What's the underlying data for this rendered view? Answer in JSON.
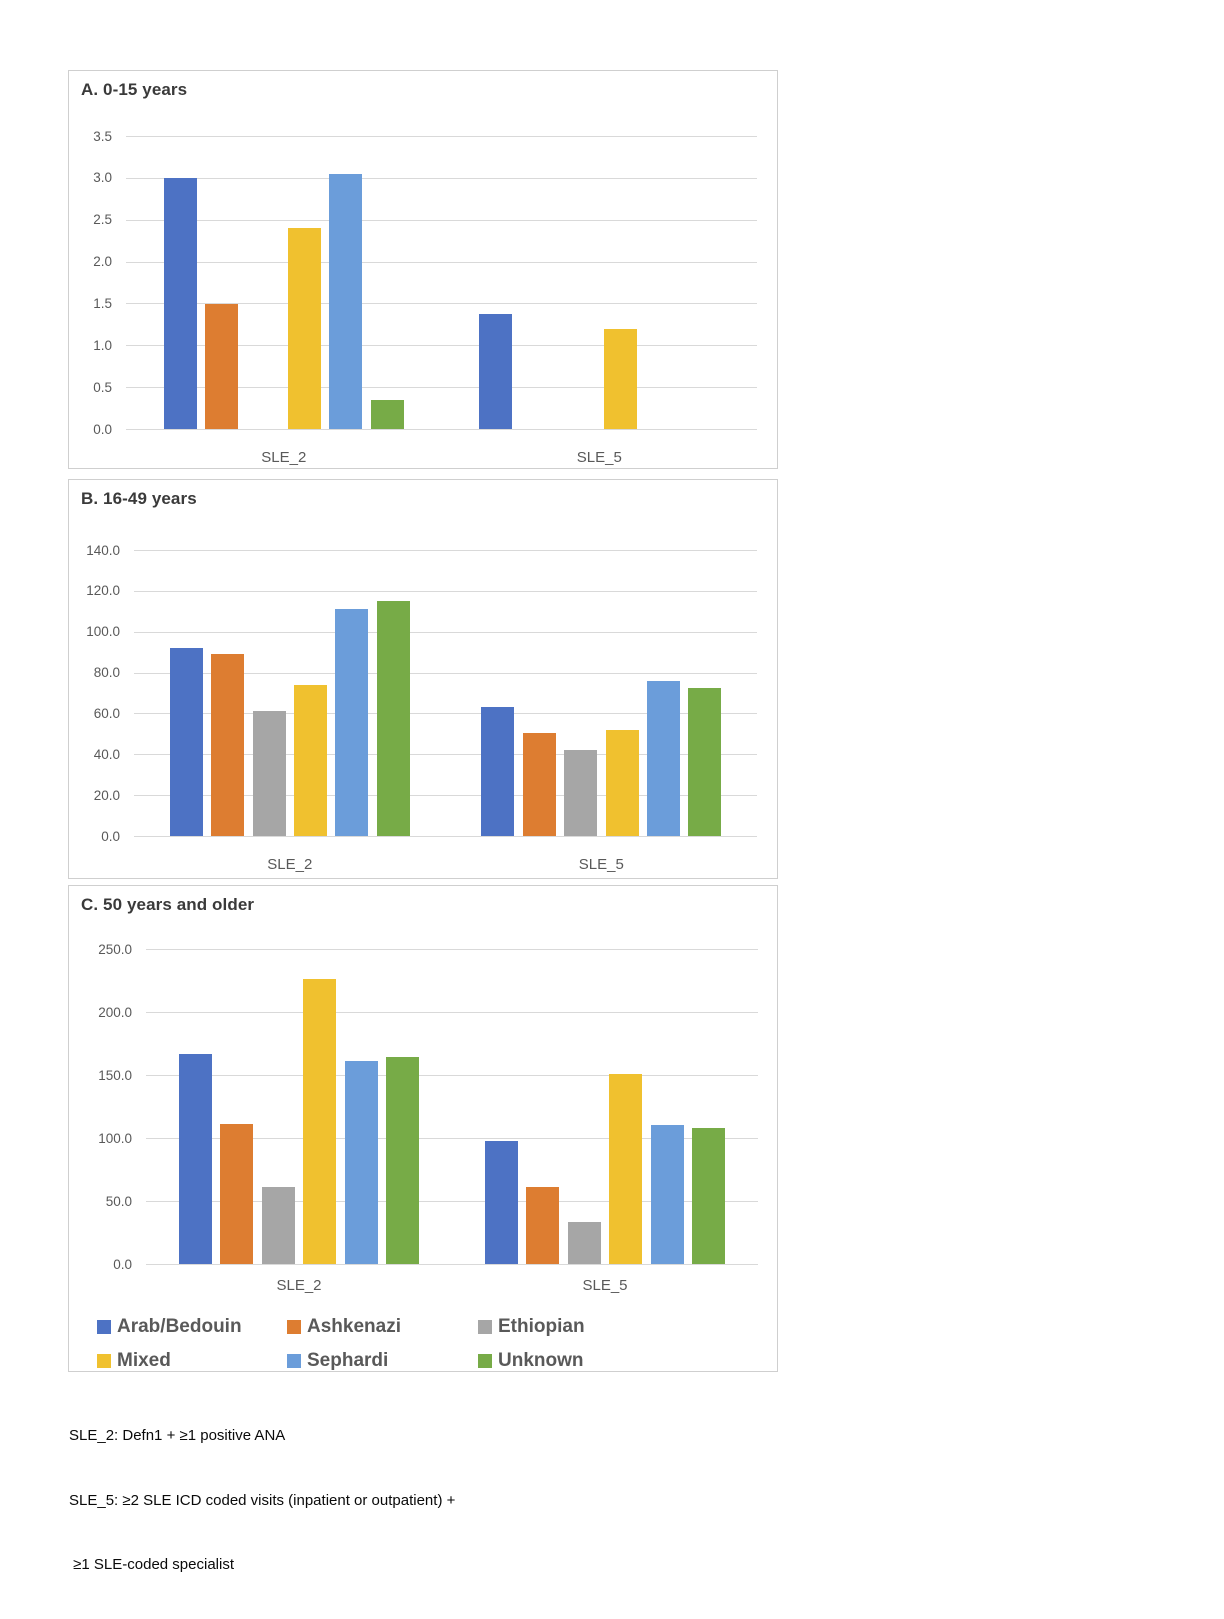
{
  "figure": {
    "legend": [
      {
        "label": "Arab/Bedouin",
        "color": "#4D72C4"
      },
      {
        "label": "Ashkenazi",
        "color": "#DD7D31"
      },
      {
        "label": "Ethiopian",
        "color": "#A6A6A6"
      },
      {
        "label": "Mixed",
        "color": "#F0C12F"
      },
      {
        "label": "Sephardi",
        "color": "#6B9DDA"
      },
      {
        "label": "Unknown",
        "color": "#77AB47"
      }
    ],
    "footnote_lines": [
      "SLE_2: Defn1 + ≥1 positive ANA",
      "SLE_5: ≥2 SLE ICD coded visits (inpatient or outpatient) +",
      " ≥1 SLE-coded specialist"
    ],
    "colors": {
      "gridline": "#d9d9d9",
      "panel_border": "#cfcfcf",
      "axis_text": "#595959",
      "title_text": "#3a3a3a"
    }
  },
  "chart_data": [
    {
      "type": "bar",
      "title": "A. 0-15 years",
      "categories": [
        "SLE_2",
        "SLE_5"
      ],
      "series": [
        {
          "name": "Arab/Bedouin",
          "values": [
            3.0,
            1.37
          ]
        },
        {
          "name": "Ashkenazi",
          "values": [
            1.49,
            0
          ]
        },
        {
          "name": "Ethiopian",
          "values": [
            0,
            0
          ]
        },
        {
          "name": "Mixed",
          "values": [
            2.4,
            1.2
          ]
        },
        {
          "name": "Sephardi",
          "values": [
            3.05,
            0
          ]
        },
        {
          "name": "Unknown",
          "values": [
            0.35,
            0
          ]
        }
      ],
      "ylim": [
        0,
        3.5
      ],
      "y_tick_labels": [
        "3.5",
        "3.0",
        "2.5",
        "2.0",
        "1.5",
        "1.0",
        "0.5",
        "0.0"
      ],
      "grid": true,
      "legend_position": "none"
    },
    {
      "type": "bar",
      "title": "B. 16-49 years",
      "categories": [
        "SLE_2",
        "SLE_5"
      ],
      "series": [
        {
          "name": "Arab/Bedouin",
          "values": [
            92,
            63
          ]
        },
        {
          "name": "Ashkenazi",
          "values": [
            89,
            50.5
          ]
        },
        {
          "name": "Ethiopian",
          "values": [
            61,
            42
          ]
        },
        {
          "name": "Mixed",
          "values": [
            74,
            52
          ]
        },
        {
          "name": "Sephardi",
          "values": [
            111,
            76
          ]
        },
        {
          "name": "Unknown",
          "values": [
            115,
            72.5
          ]
        }
      ],
      "ylim": [
        0,
        140
      ],
      "y_tick_labels": [
        "140.0",
        "120.0",
        "100.0",
        "80.0",
        "60.0",
        "40.0",
        "20.0",
        "0.0"
      ],
      "grid": true,
      "legend_position": "none"
    },
    {
      "type": "bar",
      "title": "C. 50 years and older",
      "categories": [
        "SLE_2",
        "SLE_5"
      ],
      "series": [
        {
          "name": "Arab/Bedouin",
          "values": [
            167,
            98
          ]
        },
        {
          "name": "Ashkenazi",
          "values": [
            111,
            61
          ]
        },
        {
          "name": "Ethiopian",
          "values": [
            61,
            33
          ]
        },
        {
          "name": "Mixed",
          "values": [
            226,
            151
          ]
        },
        {
          "name": "Sephardi",
          "values": [
            161,
            110
          ]
        },
        {
          "name": "Unknown",
          "values": [
            164,
            108
          ]
        }
      ],
      "ylim": [
        0,
        250
      ],
      "y_tick_labels": [
        "250.0",
        "200.0",
        "150.0",
        "100.0",
        "50.0",
        "0.0"
      ],
      "grid": true,
      "legend_position": "bottom"
    }
  ]
}
